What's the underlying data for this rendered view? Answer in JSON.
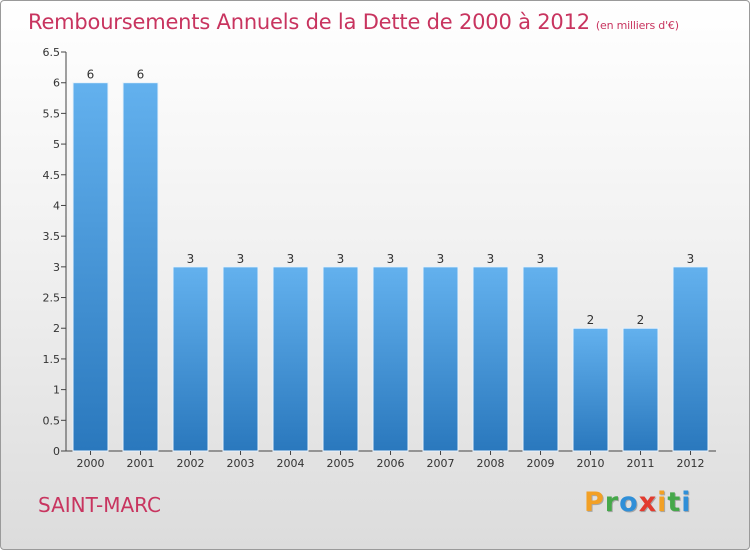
{
  "title": "Remboursements Annuels de la Dette de 2000 à 2012",
  "subtitle": "(en milliers d'€)",
  "location": "SAINT-MARC",
  "logo": {
    "letters": [
      "P",
      "r",
      "o",
      "x",
      "i",
      "t",
      "i"
    ],
    "colors": [
      "#f2a025",
      "#45a84a",
      "#2f8fd8",
      "#e23b2f",
      "#f2a025",
      "#45a84a",
      "#2f8fd8"
    ]
  },
  "colors": {
    "bar_light": "#63b1ee",
    "bar_dark": "#2a78bd",
    "title": "#c8345f"
  },
  "chart_data": {
    "type": "bar",
    "title": "Remboursements Annuels de la Dette de 2000 à 2012",
    "subtitle": "(en milliers d'€)",
    "categories": [
      "2000",
      "2001",
      "2002",
      "2003",
      "2004",
      "2005",
      "2006",
      "2007",
      "2008",
      "2009",
      "2010",
      "2011",
      "2012"
    ],
    "values": [
      6,
      6,
      3,
      3,
      3,
      3,
      3,
      3,
      3,
      3,
      2,
      2,
      3
    ],
    "data_labels": [
      "6",
      "6",
      "3",
      "3",
      "3",
      "3",
      "3",
      "3",
      "3",
      "3",
      "2",
      "2",
      "3"
    ],
    "yticks": [
      0,
      0.5,
      1,
      1.5,
      2,
      2.5,
      3,
      3.5,
      4,
      4.5,
      5,
      5.5,
      6,
      6.5
    ],
    "ytick_labels": [
      "0",
      "0.5",
      "1",
      "1.5",
      "2",
      "2.5",
      "3",
      "3.5",
      "4",
      "4.5",
      "5",
      "5.5",
      "6",
      "6.5"
    ],
    "ylim": [
      0,
      6.5
    ],
    "xlabel": "",
    "ylabel": "",
    "grid": false,
    "legend": "none"
  }
}
